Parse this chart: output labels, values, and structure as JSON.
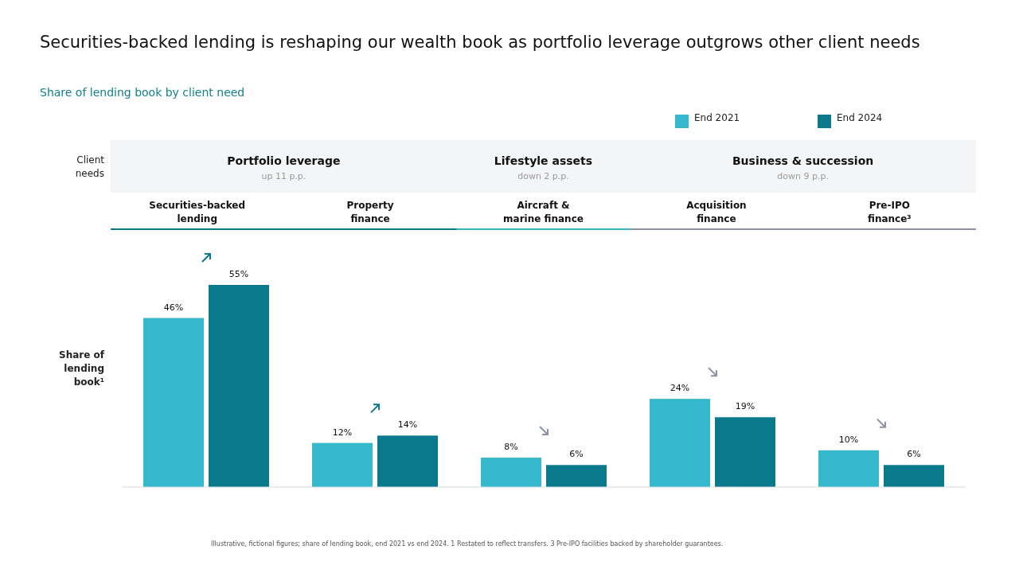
{
  "chart_data": {
    "type": "bar",
    "title": "Securities-backed lending is reshaping our wealth book as portfolio leverage outgrows other client needs",
    "subtitle": "Share of lending book by client need",
    "ylabel": "Share of lending book¹",
    "categories": [
      "Securities-backed lending",
      "Property finance",
      "Aircraft & marine finance",
      "Acquisition finance",
      "Pre-IPO finance³"
    ],
    "series": [
      {
        "name": "End 2021",
        "color": "#35b8cb",
        "values": [
          46,
          12,
          8,
          24,
          10
        ],
        "value_labels": [
          "46%",
          "12%",
          "8%",
          "24%",
          "10%"
        ]
      },
      {
        "name": "End 2024",
        "color": "#0a798b",
        "values": [
          55,
          14,
          6,
          19,
          6
        ],
        "value_labels": [
          "55%",
          "14%",
          "6%",
          "19%",
          "6%"
        ]
      }
    ],
    "legend": "top right",
    "annotations": [
      "Client needs",
      "Portfolio leverage",
      "up 11 p.p.",
      "Lifestyle assets",
      "down 2 p.p.",
      "Business & succession",
      "down 9 p.p.",
      "Illustrative, fictional figures; share of lending book, end 2021 vs end 2024.   1 Restated to reflect transfers.   3 Pre-IPO facilities backed by shareholder guarantees."
    ]
  }
}
